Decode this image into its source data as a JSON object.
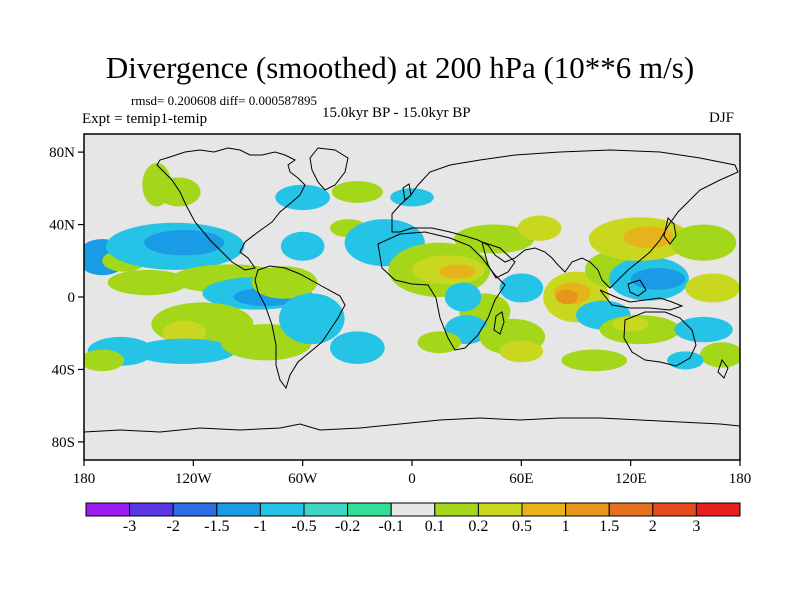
{
  "title": "Divergence (smoothed) at 200 hPa (10**6 m/s)",
  "stats": "rmsd= 0.200608 diff= 0.000587895",
  "experiment": "Expt = temip1-temip",
  "period": "15.0kyr BP - 15.0kyr BP",
  "season": "DJF",
  "map": {
    "projection": "cylindrical equidistant",
    "lon_range": [
      -180,
      180
    ],
    "lat_range": [
      -90,
      90
    ],
    "lat_ticks": [
      {
        "value": 80,
        "label": "80N"
      },
      {
        "value": 40,
        "label": "40N"
      },
      {
        "value": 0,
        "label": "0"
      },
      {
        "value": -40,
        "label": "40S"
      },
      {
        "value": -80,
        "label": "80S"
      }
    ],
    "lon_ticks": [
      {
        "value": -180,
        "label": "180"
      },
      {
        "value": -120,
        "label": "120W"
      },
      {
        "value": -60,
        "label": "60W"
      },
      {
        "value": 0,
        "label": "0"
      },
      {
        "value": 60,
        "label": "60E"
      },
      {
        "value": 120,
        "label": "120E"
      },
      {
        "value": 180,
        "label": "180"
      }
    ],
    "background_color": "#e6e6e6",
    "regions": [
      {
        "lon": -170,
        "lat": 22,
        "rx": 14,
        "ry": 10,
        "level": -0.5
      },
      {
        "lon": -158,
        "lat": 20,
        "rx": 12,
        "ry": 6,
        "level": 0.2
      },
      {
        "lon": -130,
        "lat": 28,
        "rx": 38,
        "ry": 13,
        "level": -0.2
      },
      {
        "lon": -125,
        "lat": 30,
        "rx": 22,
        "ry": 7,
        "level": -0.5
      },
      {
        "lon": -145,
        "lat": 8,
        "rx": 22,
        "ry": 7,
        "level": 0.2
      },
      {
        "lon": -100,
        "lat": 10,
        "rx": 32,
        "ry": 8,
        "level": 0.2
      },
      {
        "lon": -85,
        "lat": 2,
        "rx": 30,
        "ry": 9,
        "level": -0.2
      },
      {
        "lon": -80,
        "lat": 0,
        "rx": 18,
        "ry": 5,
        "level": -0.5
      },
      {
        "lon": -70,
        "lat": 8,
        "rx": 18,
        "ry": 9,
        "level": 0.2
      },
      {
        "lon": -115,
        "lat": -15,
        "rx": 28,
        "ry": 12,
        "level": 0.2
      },
      {
        "lon": -125,
        "lat": -20,
        "rx": 12,
        "ry": 7,
        "level": 0.5
      },
      {
        "lon": -160,
        "lat": -30,
        "rx": 18,
        "ry": 8,
        "level": -0.2
      },
      {
        "lon": -125,
        "lat": -30,
        "rx": 28,
        "ry": 7,
        "level": -0.2
      },
      {
        "lon": -170,
        "lat": -35,
        "rx": 12,
        "ry": 6,
        "level": 0.2
      },
      {
        "lon": -80,
        "lat": -25,
        "rx": 25,
        "ry": 10,
        "level": 0.2
      },
      {
        "lon": -55,
        "lat": -12,
        "rx": 18,
        "ry": 14,
        "level": -0.2
      },
      {
        "lon": -30,
        "lat": -28,
        "rx": 15,
        "ry": 9,
        "level": -0.2
      },
      {
        "lon": -60,
        "lat": 28,
        "rx": 12,
        "ry": 8,
        "level": -0.2
      },
      {
        "lon": -35,
        "lat": 38,
        "rx": 10,
        "ry": 5,
        "level": 0.2
      },
      {
        "lon": -15,
        "lat": 30,
        "rx": 22,
        "ry": 13,
        "level": -0.2
      },
      {
        "lon": -128,
        "lat": 58,
        "rx": 12,
        "ry": 8,
        "level": 0.2
      },
      {
        "lon": -60,
        "lat": 55,
        "rx": 15,
        "ry": 7,
        "level": -0.2
      },
      {
        "lon": -30,
        "lat": 58,
        "rx": 14,
        "ry": 6,
        "level": 0.2
      },
      {
        "lon": 0,
        "lat": 55,
        "rx": 12,
        "ry": 5,
        "level": -0.2
      },
      {
        "lon": -140,
        "lat": 62,
        "rx": 8,
        "ry": 12,
        "level": 0.2
      },
      {
        "lon": 15,
        "lat": 15,
        "rx": 28,
        "ry": 15,
        "level": 0.2
      },
      {
        "lon": 20,
        "lat": 15,
        "rx": 20,
        "ry": 8,
        "level": 0.5
      },
      {
        "lon": 25,
        "lat": 14,
        "rx": 10,
        "ry": 4,
        "level": 1
      },
      {
        "lon": 45,
        "lat": 32,
        "rx": 22,
        "ry": 8,
        "level": 0.2
      },
      {
        "lon": 70,
        "lat": 38,
        "rx": 12,
        "ry": 7,
        "level": 0.5
      },
      {
        "lon": 40,
        "lat": -8,
        "rx": 14,
        "ry": 10,
        "level": 0.2
      },
      {
        "lon": 28,
        "lat": 0,
        "rx": 10,
        "ry": 8,
        "level": -0.2
      },
      {
        "lon": 60,
        "lat": 5,
        "rx": 12,
        "ry": 8,
        "level": -0.2
      },
      {
        "lon": 30,
        "lat": -18,
        "rx": 12,
        "ry": 8,
        "level": -0.2
      },
      {
        "lon": 15,
        "lat": -25,
        "rx": 12,
        "ry": 6,
        "level": 0.2
      },
      {
        "lon": 55,
        "lat": -22,
        "rx": 18,
        "ry": 10,
        "level": 0.2
      },
      {
        "lon": 60,
        "lat": -30,
        "rx": 12,
        "ry": 6,
        "level": 0.5
      },
      {
        "lon": 90,
        "lat": 0,
        "rx": 18,
        "ry": 14,
        "level": 0.5
      },
      {
        "lon": 88,
        "lat": 2,
        "rx": 10,
        "ry": 6,
        "level": 1
      },
      {
        "lon": 85,
        "lat": 0,
        "rx": 6,
        "ry": 4,
        "level": 1.5
      },
      {
        "lon": 110,
        "lat": 15,
        "rx": 15,
        "ry": 10,
        "level": 0.2
      },
      {
        "lon": 130,
        "lat": 10,
        "rx": 22,
        "ry": 12,
        "level": -0.2
      },
      {
        "lon": 135,
        "lat": 10,
        "rx": 15,
        "ry": 6,
        "level": -0.5
      },
      {
        "lon": 125,
        "lat": 32,
        "rx": 28,
        "ry": 12,
        "level": 0.5
      },
      {
        "lon": 130,
        "lat": 33,
        "rx": 14,
        "ry": 6,
        "level": 1
      },
      {
        "lon": 160,
        "lat": 30,
        "rx": 18,
        "ry": 10,
        "level": 0.2
      },
      {
        "lon": 165,
        "lat": 5,
        "rx": 15,
        "ry": 8,
        "level": 0.5
      },
      {
        "lon": 105,
        "lat": -10,
        "rx": 15,
        "ry": 8,
        "level": -0.2
      },
      {
        "lon": 125,
        "lat": -18,
        "rx": 22,
        "ry": 8,
        "level": 0.2
      },
      {
        "lon": 120,
        "lat": -15,
        "rx": 10,
        "ry": 4,
        "level": 0.5
      },
      {
        "lon": 160,
        "lat": -18,
        "rx": 16,
        "ry": 7,
        "level": -0.2
      },
      {
        "lon": 100,
        "lat": -35,
        "rx": 18,
        "ry": 6,
        "level": 0.2
      },
      {
        "lon": 170,
        "lat": -32,
        "rx": 12,
        "ry": 7,
        "level": 0.2
      },
      {
        "lon": 150,
        "lat": -35,
        "rx": 10,
        "ry": 5,
        "level": -0.2
      }
    ]
  },
  "colorbar": {
    "colors": [
      "#9c1cf0",
      "#5a37e6",
      "#2b6ee6",
      "#1a9be6",
      "#25c3e6",
      "#3fd6c8",
      "#30e096",
      "#e6e6e6",
      "#a4d61a",
      "#c9d81e",
      "#e6b41a",
      "#e6961a",
      "#e6701e",
      "#e64b1e",
      "#e61e1e"
    ],
    "labels": [
      "-3",
      "-2",
      "-1.5",
      "-1",
      "-0.5",
      "-0.2",
      "-0.1",
      "0.1",
      "0.2",
      "0.5",
      "1",
      "1.5",
      "2",
      "3"
    ],
    "level_colors": {
      "-0.5": "#1a9be6",
      "-0.2": "#25c3e6",
      "0.2": "#a4d61a",
      "0.5": "#c9d81e",
      "1": "#e6b41a",
      "1.5": "#e6961a"
    }
  }
}
